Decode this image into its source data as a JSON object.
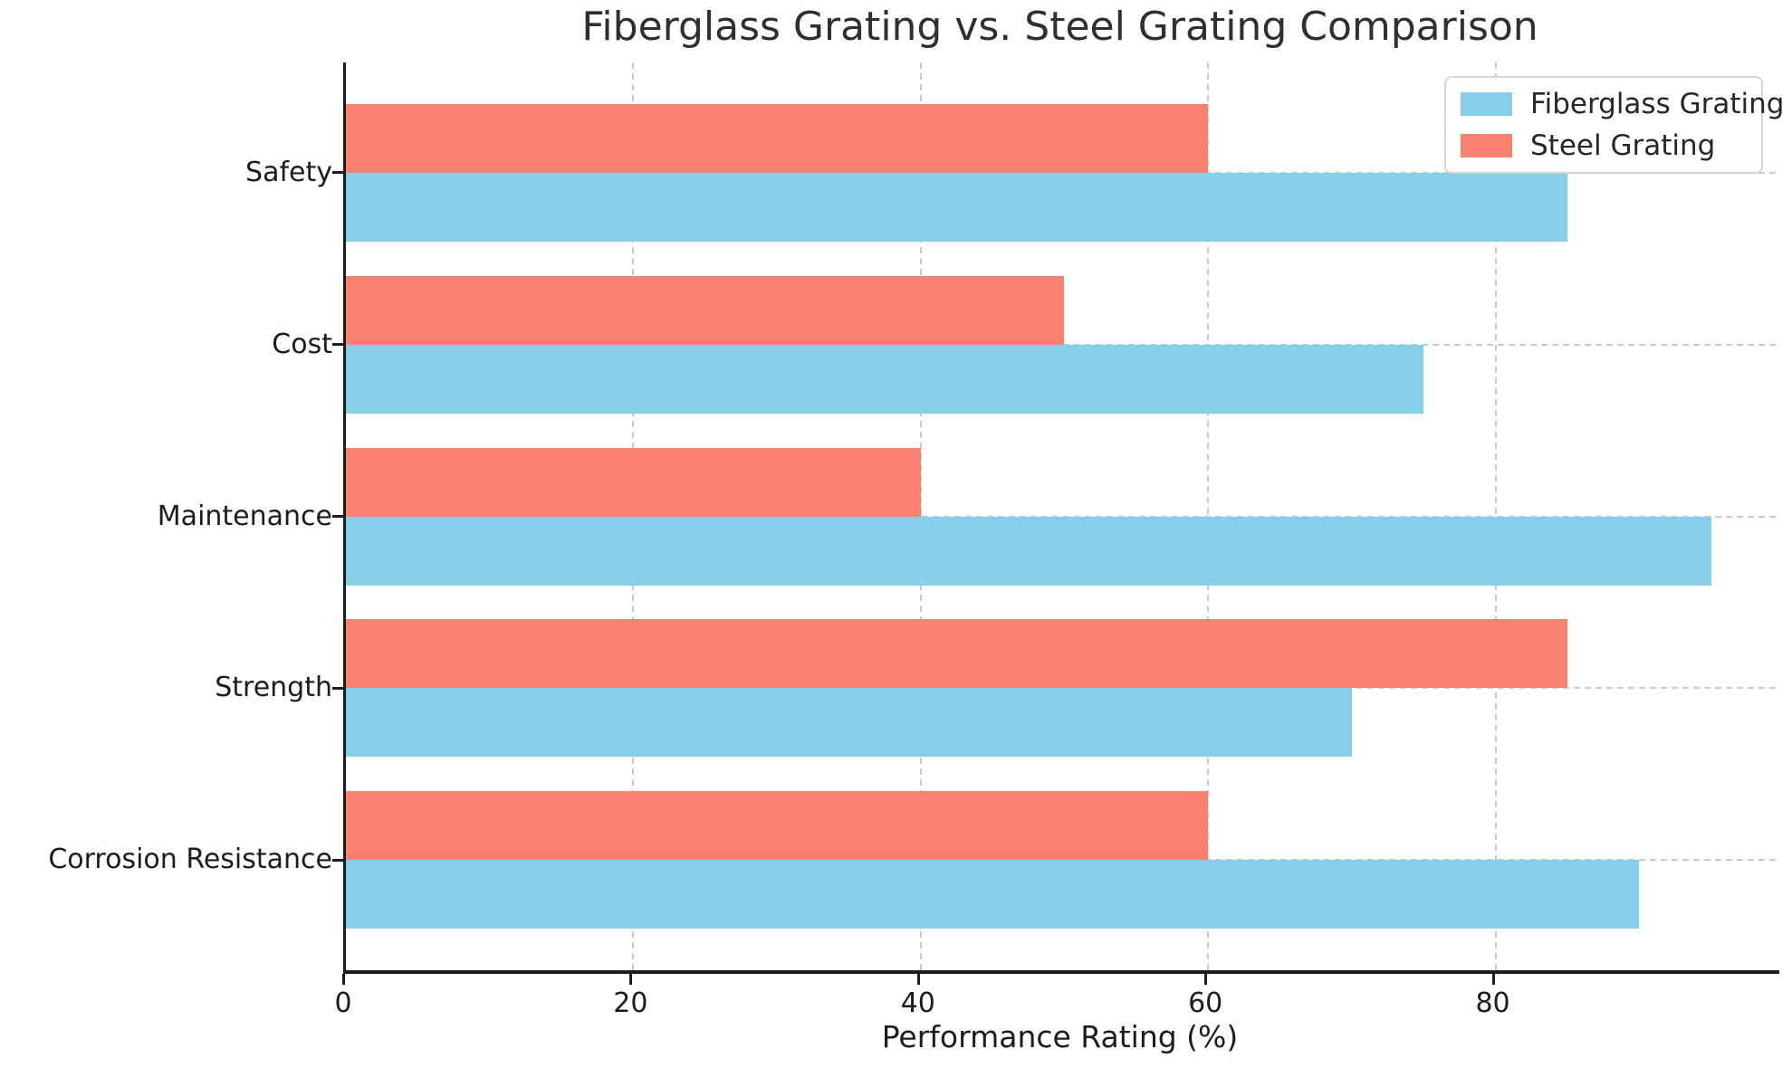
{
  "chart_data": {
    "type": "bar",
    "orientation": "horizontal",
    "title": "Fiberglass Grating vs. Steel Grating Comparison",
    "xlabel": "Performance Rating (%)",
    "ylabel": "",
    "categories": [
      "Safety",
      "Cost",
      "Maintenance",
      "Strength",
      "Corrosion Resistance"
    ],
    "series": [
      {
        "name": "Fiberglass Grating",
        "color": "#87CEEB",
        "values": [
          85,
          75,
          95,
          70,
          90
        ]
      },
      {
        "name": "Steel Grating",
        "color": "#FA8072",
        "values": [
          60,
          50,
          40,
          85,
          60
        ]
      }
    ],
    "xlim": [
      0,
      99.75
    ],
    "xticks": [
      0,
      20,
      40,
      60,
      80
    ],
    "grid": true,
    "grid_color": "#c9c9c9",
    "grid_style": "dashed",
    "legend_position": "upper right",
    "legend_order": [
      "Fiberglass Grating",
      "Steel Grating"
    ]
  }
}
